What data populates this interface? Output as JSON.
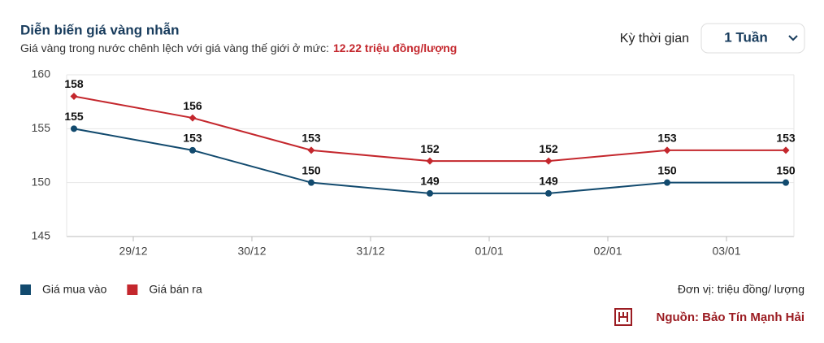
{
  "header": {
    "title": "Diễn biến giá vàng nhẫn",
    "subtitle": "Giá vàng trong nước chênh lệch với giá vàng thế giới ở mức:",
    "highlight": "12.22 triệu đồng/lượng",
    "period_label": "Kỳ thời gian",
    "period_value": "1 Tuần"
  },
  "chart_data": {
    "type": "line",
    "categories": [
      null,
      null,
      null,
      null,
      null,
      null,
      null
    ],
    "x_tick_labels": [
      "29/12",
      "30/12",
      "31/12",
      "01/01",
      "02/01",
      "03/01"
    ],
    "series": [
      {
        "name": "Giá mua vào",
        "color": "#124a6e",
        "marker": "circle",
        "values": [
          155,
          153,
          150,
          149,
          149,
          150,
          150
        ]
      },
      {
        "name": "Giá bán ra",
        "color": "#c4272d",
        "marker": "diamond",
        "values": [
          158,
          156,
          153,
          152,
          152,
          153,
          153
        ]
      }
    ],
    "ylim": [
      145,
      160
    ],
    "yticks": [
      145,
      150,
      155,
      160
    ],
    "grid": true
  },
  "footer": {
    "unit": "Đơn vị: triệu đồng/ lượng",
    "source": "Nguồn: Bảo Tín Mạnh Hải"
  }
}
